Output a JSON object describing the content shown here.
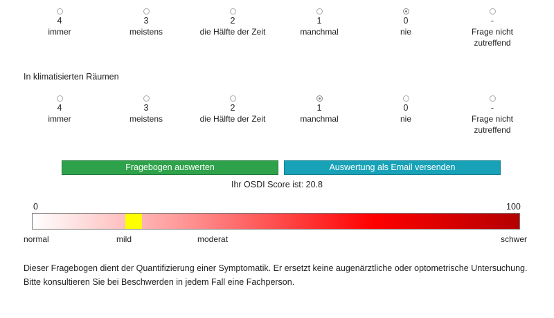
{
  "question1": {
    "options": [
      {
        "value": "4",
        "label": "immer",
        "checked": false
      },
      {
        "value": "3",
        "label": "meistens",
        "checked": false
      },
      {
        "value": "2",
        "label": "die Hälfte der Zeit",
        "checked": false
      },
      {
        "value": "1",
        "label": "manchmal",
        "checked": false
      },
      {
        "value": "0",
        "label": "nie",
        "checked": true
      },
      {
        "value": "-",
        "label": "Frage nicht zutreffend",
        "checked": false
      }
    ]
  },
  "question2": {
    "title": "In klimatisierten Räumen",
    "options": [
      {
        "value": "4",
        "label": "immer",
        "checked": false
      },
      {
        "value": "3",
        "label": "meistens",
        "checked": false
      },
      {
        "value": "2",
        "label": "die Hälfte der Zeit",
        "checked": false
      },
      {
        "value": "1",
        "label": "manchmal",
        "checked": true
      },
      {
        "value": "0",
        "label": "nie",
        "checked": false
      },
      {
        "value": "-",
        "label": "Frage nicht zutreffend",
        "checked": false
      }
    ]
  },
  "buttons": {
    "evaluate": "Fragebogen auswerten",
    "email": "Auswertung als Email versenden"
  },
  "score": {
    "text": "Ihr OSDI Score ist: 20.8",
    "value": 20.8
  },
  "scale": {
    "min": "0",
    "max": "100",
    "categories": [
      "normal",
      "mild",
      "moderat",
      "schwer"
    ],
    "gradient_colors": [
      "#ffffff",
      "#ff9a9a",
      "#ff0000",
      "#b40000"
    ],
    "marker_color": "#ffff00",
    "button_colors": {
      "evaluate": "#2ea24a",
      "email": "#17a2b8"
    }
  },
  "disclaimer": "Dieser Fragebogen dient der Quantifizierung einer Symptomatik. Er ersetzt keine augenärztliche oder optometrische Untersuchung. Bitte konsultieren Sie bei Beschwerden in jedem Fall eine Fachperson."
}
